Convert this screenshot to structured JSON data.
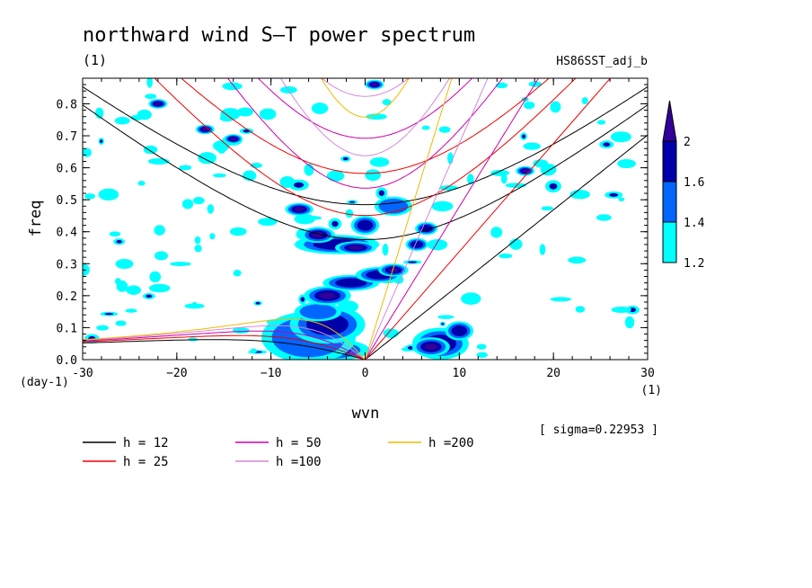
{
  "chart_data": {
    "type": "heatmap",
    "title": "northward wind S–T power spectrum",
    "subtitle_left": "(1)",
    "subtitle_right": "HS86SST_adj_b",
    "xlabel": "wvn",
    "ylabel": "freq",
    "x_unit": "(1)",
    "y_unit": "(day-1)",
    "xlim": [
      -30,
      30
    ],
    "ylim": [
      0,
      0.88
    ],
    "x_ticks": [
      -30,
      -20,
      -10,
      0,
      10,
      20,
      30
    ],
    "x_tick_labels": [
      "-30",
      "−20",
      "−10",
      "0",
      "10",
      "20",
      "30"
    ],
    "y_ticks": [
      0.0,
      0.1,
      0.2,
      0.3,
      0.4,
      0.5,
      0.6,
      0.7,
      0.8
    ],
    "y_tick_labels": [
      "0.0",
      "0.1",
      "0.2",
      "0.3",
      "0.4",
      "0.5",
      "0.6",
      "0.7",
      "0.8"
    ],
    "sigma_note": "[ sigma=0.22953 ]",
    "colorbar": {
      "levels": [
        1.2,
        1.4,
        1.6,
        2
      ],
      "labels": [
        "1.2",
        "1.4",
        "1.6",
        "2"
      ],
      "colors": [
        "#00ffff",
        "#0066ff",
        "#0000aa",
        "#330099"
      ]
    },
    "dispersion_curves": [
      {
        "label": "h = 12",
        "h": 12,
        "color": "#000000"
      },
      {
        "label": "h = 25",
        "h": 25,
        "color": "#ee0000"
      },
      {
        "label": "h = 50",
        "h": 50,
        "color": "#cc00aa"
      },
      {
        "label": "h =100",
        "h": 100,
        "color": "#d488d8"
      },
      {
        "label": "h =200",
        "h": 200,
        "color": "#eebb00"
      }
    ],
    "blobs": [
      {
        "x": -6,
        "y": 0.05,
        "rx": 3.6,
        "ry": 0.06,
        "level": 3
      },
      {
        "x": -4,
        "y": 0.03,
        "rx": 4.5,
        "ry": 0.035,
        "level": 3
      },
      {
        "x": -6,
        "y": 0.07,
        "rx": 5.0,
        "ry": 0.08,
        "level": 1
      },
      {
        "x": -4,
        "y": 0.11,
        "rx": 4.0,
        "ry": 0.06,
        "level": 2
      },
      {
        "x": -5,
        "y": 0.15,
        "rx": 2.5,
        "ry": 0.03,
        "level": 1
      },
      {
        "x": -4,
        "y": 0.2,
        "rx": 2.5,
        "ry": 0.03,
        "level": 3
      },
      {
        "x": -1.5,
        "y": 0.24,
        "rx": 3.0,
        "ry": 0.025,
        "level": 2
      },
      {
        "x": 1.5,
        "y": 0.265,
        "rx": 2.5,
        "ry": 0.025,
        "level": 2
      },
      {
        "x": 3,
        "y": 0.28,
        "rx": 1.6,
        "ry": 0.02,
        "level": 3
      },
      {
        "x": -3,
        "y": 0.36,
        "rx": 4.5,
        "ry": 0.03,
        "level": 2
      },
      {
        "x": -5,
        "y": 0.39,
        "rx": 1.8,
        "ry": 0.025,
        "level": 3
      },
      {
        "x": -1,
        "y": 0.35,
        "rx": 2.2,
        "ry": 0.02,
        "level": 3
      },
      {
        "x": 0,
        "y": 0.42,
        "rx": 1.5,
        "ry": 0.03,
        "level": 2
      },
      {
        "x": -7,
        "y": 0.47,
        "rx": 1.5,
        "ry": 0.02,
        "level": 3
      },
      {
        "x": 3,
        "y": 0.48,
        "rx": 2.0,
        "ry": 0.03,
        "level": 1
      },
      {
        "x": 8,
        "y": 0.05,
        "rx": 3.0,
        "ry": 0.05,
        "level": 2
      },
      {
        "x": 7,
        "y": 0.04,
        "rx": 2.0,
        "ry": 0.03,
        "level": 3
      },
      {
        "x": 10,
        "y": 0.09,
        "rx": 1.5,
        "ry": 0.03,
        "level": 2
      },
      {
        "x": 5.5,
        "y": 0.36,
        "rx": 1.2,
        "ry": 0.02,
        "level": 2
      },
      {
        "x": 6.5,
        "y": 0.41,
        "rx": 1.2,
        "ry": 0.02,
        "level": 2
      },
      {
        "x": -17,
        "y": 0.72,
        "rx": 1.0,
        "ry": 0.015,
        "level": 3
      },
      {
        "x": -14,
        "y": 0.69,
        "rx": 1.0,
        "ry": 0.015,
        "level": 3
      },
      {
        "x": -22,
        "y": 0.8,
        "rx": 1.0,
        "ry": 0.015,
        "level": 3
      },
      {
        "x": 1,
        "y": 0.86,
        "rx": 1.0,
        "ry": 0.015,
        "level": 3
      },
      {
        "x": 17,
        "y": 0.59,
        "rx": 1.0,
        "ry": 0.015,
        "level": 3
      }
    ],
    "speckle_seed": 17
  }
}
